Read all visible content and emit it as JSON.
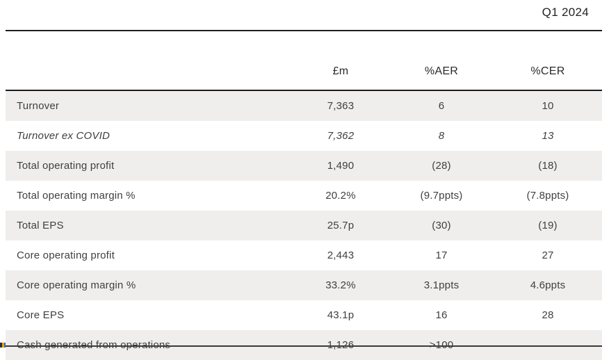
{
  "period": "Q1 2024",
  "table": {
    "columns": [
      "",
      "£m",
      "%AER",
      "%CER"
    ],
    "rows": [
      {
        "label": "Turnover",
        "gbp_m": "7,363",
        "aer": "6",
        "cer": "10",
        "italic": false
      },
      {
        "label": "Turnover ex COVID",
        "gbp_m": "7,362",
        "aer": "8",
        "cer": "13",
        "italic": true
      },
      {
        "label": "Total operating profit",
        "gbp_m": "1,490",
        "aer": "(28)",
        "cer": "(18)",
        "italic": false
      },
      {
        "label": "Total operating margin %",
        "gbp_m": "20.2%",
        "aer": "(9.7ppts)",
        "cer": "(7.8ppts)",
        "italic": false
      },
      {
        "label": "Total EPS",
        "gbp_m": "25.7p",
        "aer": "(30)",
        "cer": "(19)",
        "italic": false
      },
      {
        "label": "Core operating profit",
        "gbp_m": "2,443",
        "aer": "17",
        "cer": "27",
        "italic": false
      },
      {
        "label": "Core operating margin %",
        "gbp_m": "33.2%",
        "aer": "3.1ppts",
        "cer": "4.6ppts",
        "italic": false
      },
      {
        "label": "Core EPS",
        "gbp_m": "43.1p",
        "aer": "16",
        "cer": "28",
        "italic": false
      },
      {
        "label": "Cash generated from operations",
        "gbp_m": "1,126",
        "aer": ">100",
        "cer": "",
        "italic": false
      }
    ]
  },
  "chart_data": {
    "type": "table",
    "title": "Q1 2024",
    "columns": [
      "",
      "£m",
      "%AER",
      "%CER"
    ],
    "rows": [
      [
        "Turnover",
        "7,363",
        "6",
        "10"
      ],
      [
        "Turnover ex COVID",
        "7,362",
        "8",
        "13"
      ],
      [
        "Total operating profit",
        "1,490",
        "(28)",
        "(18)"
      ],
      [
        "Total operating margin %",
        "20.2%",
        "(9.7ppts)",
        "(7.8ppts)"
      ],
      [
        "Total EPS",
        "25.7p",
        "(30)",
        "(19)"
      ],
      [
        "Core operating profit",
        "2,443",
        "17",
        "27"
      ],
      [
        "Core operating margin %",
        "33.2%",
        "3.1ppts",
        "4.6ppts"
      ],
      [
        "Core EPS",
        "43.1p",
        "16",
        "28"
      ],
      [
        "Cash generated from operations",
        "1,126",
        ">100",
        ""
      ]
    ],
    "layout_hints": {
      "row_shading": "alternating starting with first data row",
      "value_alignment": "center",
      "italic_rows": [
        "Turnover ex COVID"
      ]
    }
  },
  "colors": {
    "row_shade": "#efeeec",
    "rule": "#1c1c1c",
    "text": "#3f3f3f",
    "background": "#ffffff"
  }
}
